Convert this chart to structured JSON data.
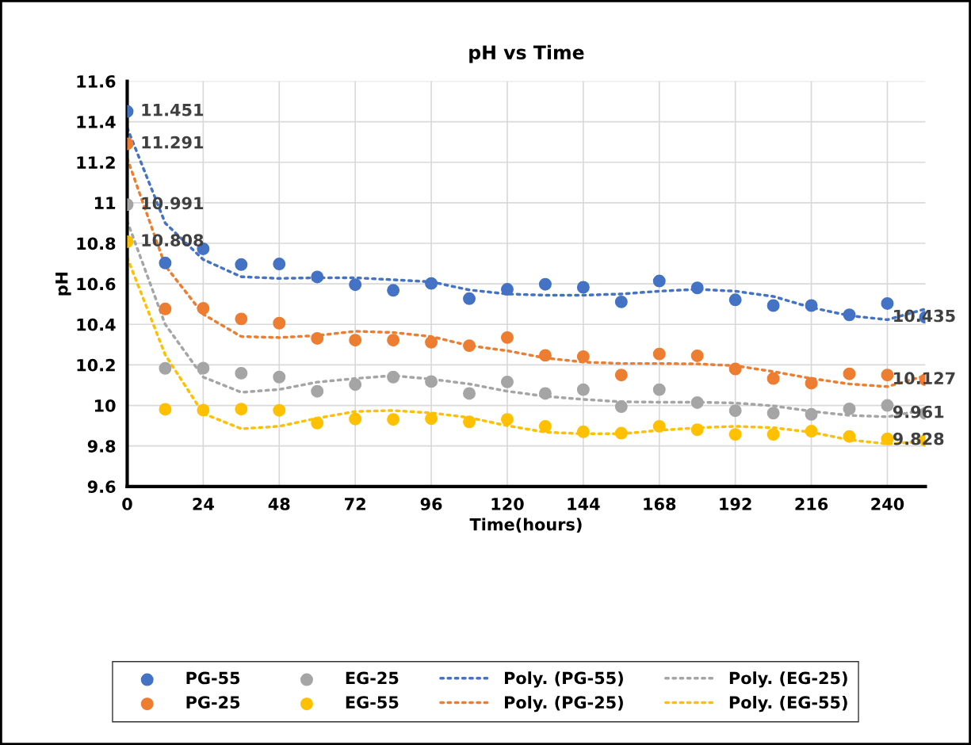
{
  "chart_data": {
    "type": "scatter",
    "title": "pH vs Time",
    "xlabel": "Time(hours)",
    "ylabel": "pH",
    "x": [
      0,
      12,
      24,
      36,
      48,
      60,
      72,
      84,
      96,
      108,
      120,
      132,
      144,
      156,
      168,
      180,
      192,
      204,
      216,
      228,
      240,
      252
    ],
    "xlim": [
      0,
      252
    ],
    "xticks": [
      0,
      24,
      48,
      72,
      96,
      120,
      144,
      168,
      192,
      216,
      240
    ],
    "ylim": [
      9.6,
      11.6
    ],
    "yticks": [
      9.6,
      9.8,
      10,
      10.2,
      10.4,
      10.6,
      10.8,
      11,
      11.2,
      11.4,
      11.6
    ],
    "grid": true,
    "legend": "bottom",
    "marker": "circle",
    "series": [
      {
        "name": "PG-55",
        "color": "#4472c4",
        "values": [
          11.451,
          10.703,
          10.773,
          10.695,
          10.698,
          10.634,
          10.596,
          10.568,
          10.602,
          10.527,
          10.573,
          10.598,
          10.583,
          10.511,
          10.614,
          10.58,
          10.521,
          10.493,
          10.493,
          10.447,
          10.503,
          10.435
        ],
        "value_labels": [
          "11.451",
          null,
          null,
          null,
          null,
          null,
          null,
          null,
          null,
          null,
          null,
          null,
          null,
          null,
          null,
          null,
          null,
          null,
          null,
          null,
          null,
          "10.435"
        ]
      },
      {
        "name": "PG-25",
        "color": "#ed7d31",
        "values": [
          11.291,
          10.476,
          10.479,
          10.427,
          10.406,
          10.331,
          10.322,
          10.322,
          10.312,
          10.295,
          10.335,
          10.247,
          10.241,
          10.15,
          10.254,
          10.245,
          10.18,
          10.133,
          10.11,
          10.156,
          10.15,
          10.127
        ],
        "value_labels": [
          "11.291",
          null,
          null,
          null,
          null,
          null,
          null,
          null,
          null,
          null,
          null,
          null,
          null,
          null,
          null,
          null,
          null,
          null,
          null,
          null,
          null,
          "10.127"
        ]
      },
      {
        "name": "EG-25",
        "color": "#a5a5a5",
        "values": [
          10.991,
          10.183,
          10.184,
          10.159,
          10.14,
          10.07,
          10.103,
          10.14,
          10.118,
          10.059,
          10.116,
          10.059,
          10.078,
          9.994,
          10.078,
          10.014,
          9.974,
          9.962,
          9.956,
          9.983,
          10.0,
          9.961
        ],
        "value_labels": [
          "10.991",
          null,
          null,
          null,
          null,
          null,
          null,
          null,
          null,
          null,
          null,
          null,
          null,
          null,
          null,
          null,
          null,
          null,
          null,
          null,
          null,
          "9.961"
        ]
      },
      {
        "name": "EG-55",
        "color": "#ffc000",
        "values": [
          10.808,
          9.981,
          9.977,
          9.982,
          9.976,
          9.913,
          9.933,
          9.931,
          9.935,
          9.919,
          9.931,
          9.897,
          9.87,
          9.863,
          9.897,
          9.88,
          9.857,
          9.857,
          9.873,
          9.847,
          9.835,
          9.828
        ],
        "value_labels": [
          "10.808",
          null,
          null,
          null,
          null,
          null,
          null,
          null,
          null,
          null,
          null,
          null,
          null,
          null,
          null,
          null,
          null,
          null,
          null,
          null,
          null,
          "9.828"
        ]
      },
      {
        "name": "Poly. (PG-55)",
        "type": "line",
        "line_style": "dotted",
        "marker": "none",
        "color": "#4472c4",
        "values": [
          11.37,
          10.9,
          10.72,
          10.635,
          10.627,
          10.63,
          10.63,
          10.62,
          10.61,
          10.57,
          10.55,
          10.544,
          10.544,
          10.55,
          10.564,
          10.573,
          10.564,
          10.538,
          10.483,
          10.443,
          10.423,
          10.476
        ]
      },
      {
        "name": "Poly. (PG-25)",
        "type": "line",
        "line_style": "dotted",
        "marker": "none",
        "color": "#ed7d31",
        "values": [
          11.22,
          10.69,
          10.45,
          10.34,
          10.335,
          10.345,
          10.366,
          10.36,
          10.34,
          10.295,
          10.27,
          10.234,
          10.214,
          10.207,
          10.207,
          10.205,
          10.196,
          10.167,
          10.133,
          10.106,
          10.093,
          10.147
        ]
      },
      {
        "name": "Poly. (EG-25)",
        "type": "line",
        "line_style": "dotted",
        "marker": "none",
        "color": "#a5a5a5",
        "values": [
          10.91,
          10.4,
          10.14,
          10.065,
          10.079,
          10.115,
          10.133,
          10.147,
          10.13,
          10.106,
          10.07,
          10.045,
          10.03,
          10.018,
          10.016,
          10.016,
          10.012,
          9.998,
          9.971,
          9.951,
          9.944,
          9.979
        ]
      },
      {
        "name": "Poly. (EG-55)",
        "type": "line",
        "line_style": "dotted",
        "marker": "none",
        "color": "#ffc000",
        "values": [
          10.73,
          10.25,
          9.96,
          9.885,
          9.897,
          9.937,
          9.97,
          9.975,
          9.963,
          9.94,
          9.9,
          9.868,
          9.86,
          9.86,
          9.877,
          9.89,
          9.897,
          9.89,
          9.868,
          9.83,
          9.81,
          9.823
        ]
      }
    ]
  }
}
